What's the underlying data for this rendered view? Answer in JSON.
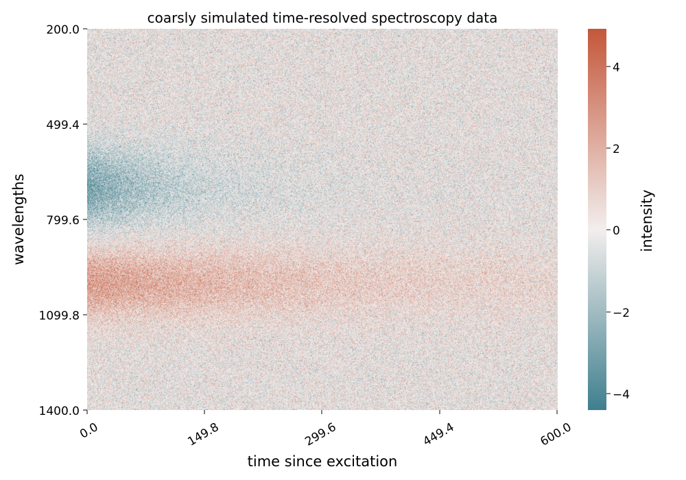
{
  "chart_data": {
    "type": "heatmap",
    "title": "coarsly simulated time-resolved spectroscopy data",
    "xlabel": "time since excitation",
    "ylabel": "wavelengths",
    "colorbar_label": "intensity",
    "x_ticks": [
      "0.0",
      "149.8",
      "299.6",
      "449.4",
      "600.0"
    ],
    "y_ticks": [
      "200.0",
      "499.4",
      "799.6",
      "1099.8",
      "1400.0"
    ],
    "colorbar_ticks": [
      "4",
      "2",
      "0",
      "−2",
      "−4"
    ],
    "xlim": [
      0,
      600
    ],
    "ylim": [
      200,
      1400
    ],
    "color_range": [
      -4.4,
      4.9
    ],
    "colors": {
      "low": "#3f7f8e",
      "mid": "#f2eeed",
      "high": "#c4573a"
    },
    "features": [
      {
        "name": "negative band",
        "wavelength_center": 700,
        "wavelength_width": 90,
        "amplitude": -3.0,
        "decay_time": 120
      },
      {
        "name": "positive band",
        "wavelength_center": 1000,
        "wavelength_width": 80,
        "amplitude": 2.6,
        "decay_time": 380
      }
    ],
    "noise_std": 1.0
  }
}
